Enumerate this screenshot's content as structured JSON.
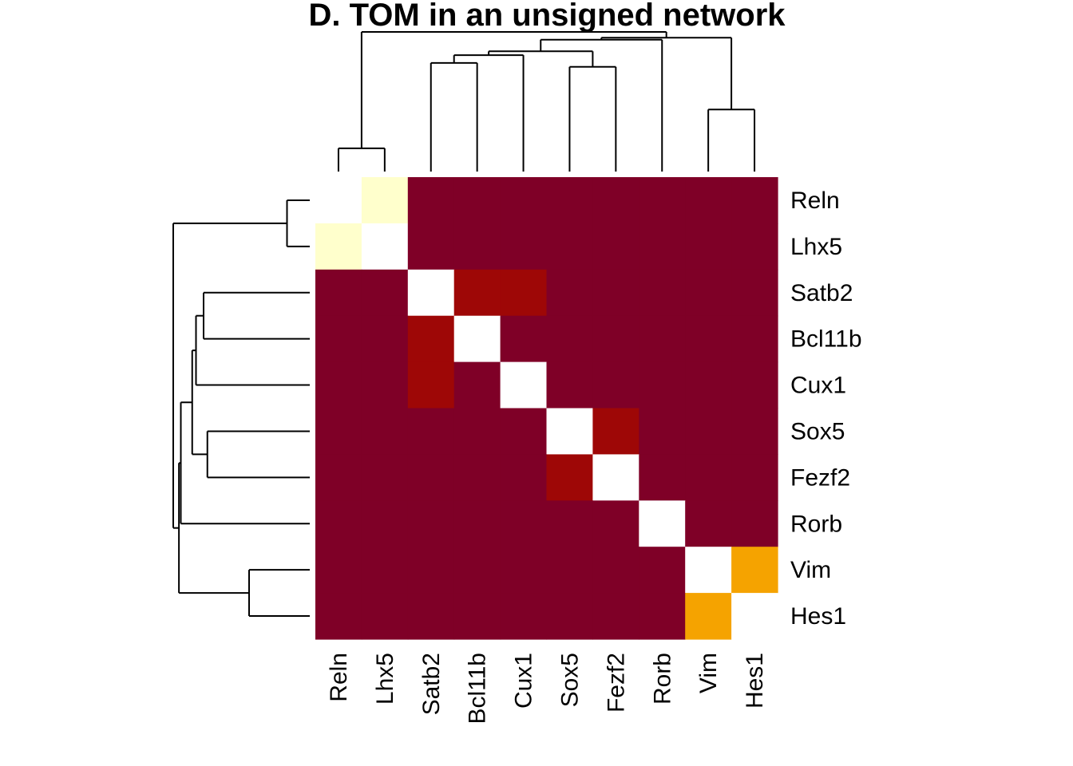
{
  "chart_data": {
    "type": "heatmap",
    "title": "D. TOM in an unsigned network",
    "genes": [
      "Reln",
      "Lhx5",
      "Satb2",
      "Bcl11b",
      "Cux1",
      "Sox5",
      "Fezf2",
      "Rorb",
      "Vim",
      "Hes1"
    ],
    "matrix": [
      [
        null,
        1,
        0,
        0,
        0,
        0,
        0,
        0,
        0,
        0
      ],
      [
        1,
        null,
        0,
        0,
        0,
        0,
        0,
        0,
        0,
        0
      ],
      [
        0,
        0,
        null,
        0.2,
        0.2,
        0,
        0,
        0,
        0,
        0
      ],
      [
        0,
        0,
        0.2,
        null,
        0,
        0,
        0,
        0,
        0,
        0
      ],
      [
        0,
        0,
        0.2,
        0,
        null,
        0,
        0,
        0,
        0,
        0
      ],
      [
        0,
        0,
        0,
        0,
        0,
        null,
        0.2,
        0,
        0,
        0
      ],
      [
        0,
        0,
        0,
        0,
        0,
        0.2,
        null,
        0,
        0,
        0
      ],
      [
        0,
        0,
        0,
        0,
        0,
        0,
        0,
        null,
        0,
        0
      ],
      [
        0,
        0,
        0,
        0,
        0,
        0,
        0,
        0,
        null,
        0.6
      ],
      [
        0,
        0,
        0,
        0,
        0,
        0,
        0,
        0,
        0.6,
        null
      ]
    ],
    "color_scale": [
      {
        "value": 0,
        "color": "#7F0027"
      },
      {
        "value": 0.2,
        "color": "#9E0706"
      },
      {
        "value": 0.6,
        "color": "#F5A300"
      },
      {
        "value": 1,
        "color": "#FFFFCC"
      }
    ],
    "diagonal_color": "#FFFFFF",
    "dendrogram": {
      "heights": {
        "Reln-Lhx5": 0.7,
        "Vim-Hes1": 0.8,
        "Satb2-Bcl11b": 0.92,
        "Sox5-Fezf2": 0.91,
        "Satb2Bcl11b-Cux1": 0.94,
        "group-Satb2Cux1-Sox5Fezf2": 0.95,
        "group-with-Rorb": 0.98,
        "group-with-VimHes1": 0.985,
        "root": 1.0
      }
    }
  }
}
